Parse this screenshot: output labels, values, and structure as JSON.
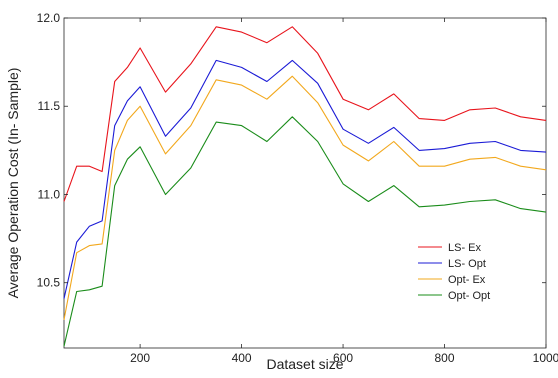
{
  "chart_data": {
    "type": "line",
    "title": "",
    "xlabel": "Dataset size",
    "ylabel": "Average Operation Cost (In- Sample)",
    "xlim": [
      50,
      1000
    ],
    "ylim": [
      10.13,
      12.0
    ],
    "xticks": [
      200,
      400,
      600,
      800,
      1000
    ],
    "yticks": [
      10.5,
      11.0,
      11.5,
      12.0
    ],
    "ytick_labels": [
      "10.5",
      "11.0",
      "11.5",
      "12.0"
    ],
    "grid": false,
    "legend_position": "bottom-right",
    "x": [
      50,
      75,
      100,
      125,
      150,
      175,
      200,
      250,
      300,
      350,
      400,
      450,
      500,
      550,
      600,
      650,
      700,
      750,
      800,
      850,
      900,
      950,
      1000
    ],
    "series": [
      {
        "name": "LS- Ex",
        "color": "#e8141c",
        "values": [
          10.96,
          11.16,
          11.16,
          11.13,
          11.64,
          11.72,
          11.83,
          11.58,
          11.74,
          11.95,
          11.92,
          11.86,
          11.95,
          11.8,
          11.54,
          11.48,
          11.57,
          11.43,
          11.42,
          11.48,
          11.49,
          11.44,
          11.42
        ]
      },
      {
        "name": "LS- Opt",
        "color": "#1b1bd6",
        "values": [
          10.41,
          10.73,
          10.82,
          10.85,
          11.39,
          11.53,
          11.61,
          11.33,
          11.49,
          11.76,
          11.72,
          11.64,
          11.76,
          11.63,
          11.37,
          11.29,
          11.38,
          11.25,
          11.26,
          11.29,
          11.3,
          11.25,
          11.24
        ]
      },
      {
        "name": "Opt- Ex",
        "color": "#f2a81d",
        "values": [
          10.29,
          10.67,
          10.71,
          10.72,
          11.25,
          11.42,
          11.5,
          11.23,
          11.39,
          11.65,
          11.62,
          11.54,
          11.67,
          11.52,
          11.28,
          11.19,
          11.3,
          11.16,
          11.16,
          11.2,
          11.21,
          11.16,
          11.14
        ]
      },
      {
        "name": "Opt- Opt",
        "color": "#1a8c1a",
        "values": [
          10.14,
          10.45,
          10.46,
          10.48,
          11.05,
          11.2,
          11.27,
          11.0,
          11.15,
          11.41,
          11.39,
          11.3,
          11.44,
          11.3,
          11.06,
          10.96,
          11.05,
          10.93,
          10.94,
          10.96,
          10.97,
          10.92,
          10.9
        ]
      }
    ]
  }
}
